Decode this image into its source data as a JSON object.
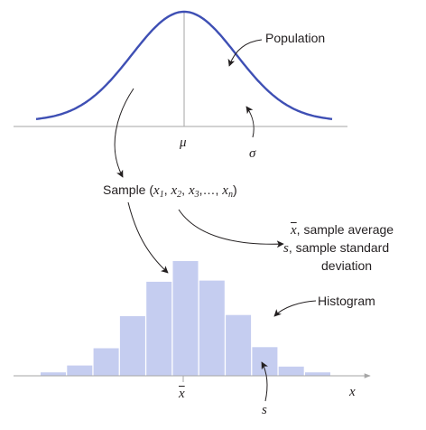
{
  "population": {
    "label": "Population",
    "mean_symbol": "μ",
    "sd_symbol": "σ"
  },
  "sample": {
    "prefix": "Sample (",
    "x1": "x",
    "sub1": "1",
    "x2": "x",
    "sub2": "2",
    "x3": "x",
    "sub3": "3",
    "dots": "…,",
    "xn": "x",
    "subn": "n",
    "suffix": ")"
  },
  "statistics": {
    "xbar_symbol": "x",
    "xbar_text": ", sample average",
    "s_symbol": "s",
    "s_text_line1": ", sample standard",
    "s_text_line2": "deviation"
  },
  "histogram": {
    "label": "Histogram",
    "xbar_symbol": "x",
    "s_symbol": "s",
    "axis_symbol": "x",
    "bar_heights_relative": [
      0.03,
      0.09,
      0.24,
      0.52,
      0.82,
      1.0,
      0.83,
      0.53,
      0.25,
      0.08,
      0.03
    ]
  },
  "colors": {
    "curve": "#3e4fb4",
    "bars": "#c5cdf0",
    "axis": "#a6a6a6",
    "text": "#231f20"
  }
}
